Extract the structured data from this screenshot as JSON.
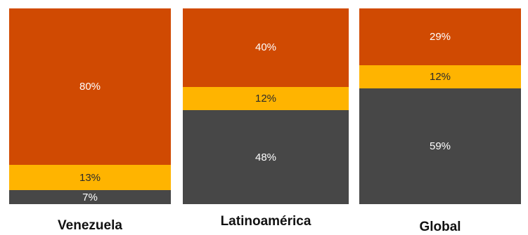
{
  "chart_data": {
    "type": "bar",
    "stacked": true,
    "normalized": true,
    "categories": [
      "Venezuela",
      "Latinoamérica",
      "Global"
    ],
    "series": [
      {
        "values": [
          7,
          48,
          59
        ],
        "color": "#474747"
      },
      {
        "values": [
          13,
          12,
          12
        ],
        "color": "#FFB400"
      },
      {
        "values": [
          80,
          40,
          29
        ],
        "color": "#D04A02"
      }
    ],
    "value_labels": [
      [
        "7%",
        "48%",
        "59%"
      ],
      [
        "13%",
        "12%",
        "12%"
      ],
      [
        "80%",
        "40%",
        "29%"
      ]
    ],
    "ylim": [
      0,
      100
    ],
    "unit": "%",
    "grid": false,
    "legend": false
  }
}
